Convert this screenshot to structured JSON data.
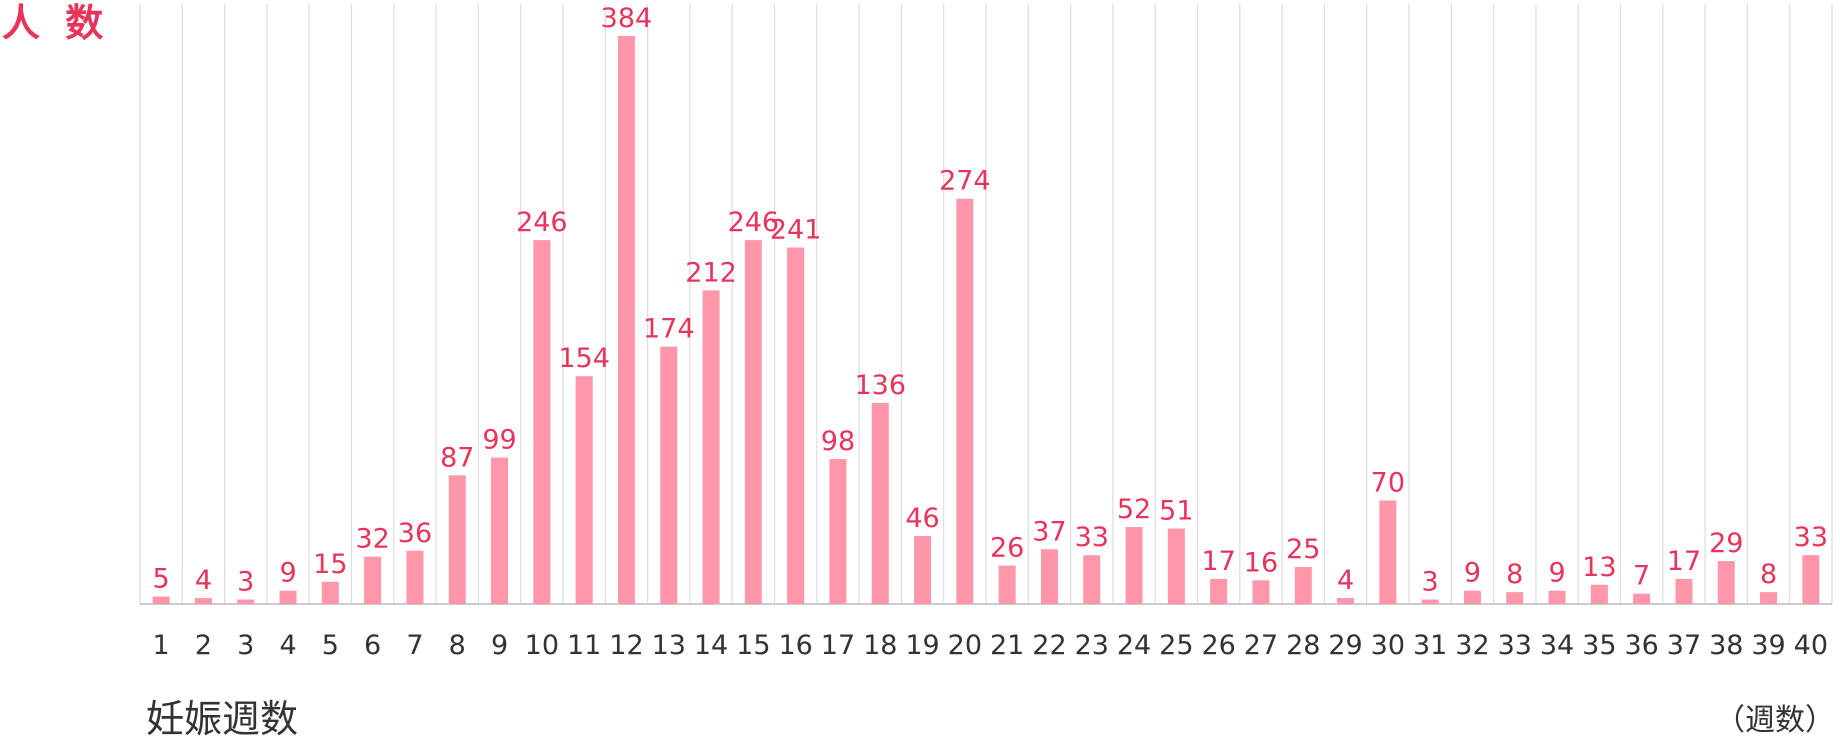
{
  "chart_data": {
    "type": "bar",
    "title": "",
    "ylabel": "人 数",
    "xlabel": "妊娠週数",
    "x_unit": "（週数）",
    "ylim": [
      0,
      384
    ],
    "grid": "vertical",
    "colors": {
      "bar": "#ff96aa",
      "label": "#e8345a",
      "grid": "#dddddd",
      "axis": "#cccccc",
      "text": "#333333"
    },
    "categories": [
      "1",
      "2",
      "3",
      "4",
      "5",
      "6",
      "7",
      "8",
      "9",
      "10",
      "11",
      "12",
      "13",
      "14",
      "15",
      "16",
      "17",
      "18",
      "19",
      "20",
      "21",
      "22",
      "23",
      "24",
      "25",
      "26",
      "27",
      "28",
      "29",
      "30",
      "31",
      "32",
      "33",
      "34",
      "35",
      "36",
      "37",
      "38",
      "39",
      "40"
    ],
    "values": [
      5,
      4,
      3,
      9,
      15,
      32,
      36,
      87,
      99,
      246,
      154,
      384,
      174,
      212,
      246,
      241,
      98,
      136,
      46,
      274,
      26,
      37,
      33,
      52,
      51,
      17,
      16,
      25,
      4,
      70,
      3,
      9,
      8,
      9,
      13,
      7,
      17,
      29,
      8,
      33
    ]
  }
}
